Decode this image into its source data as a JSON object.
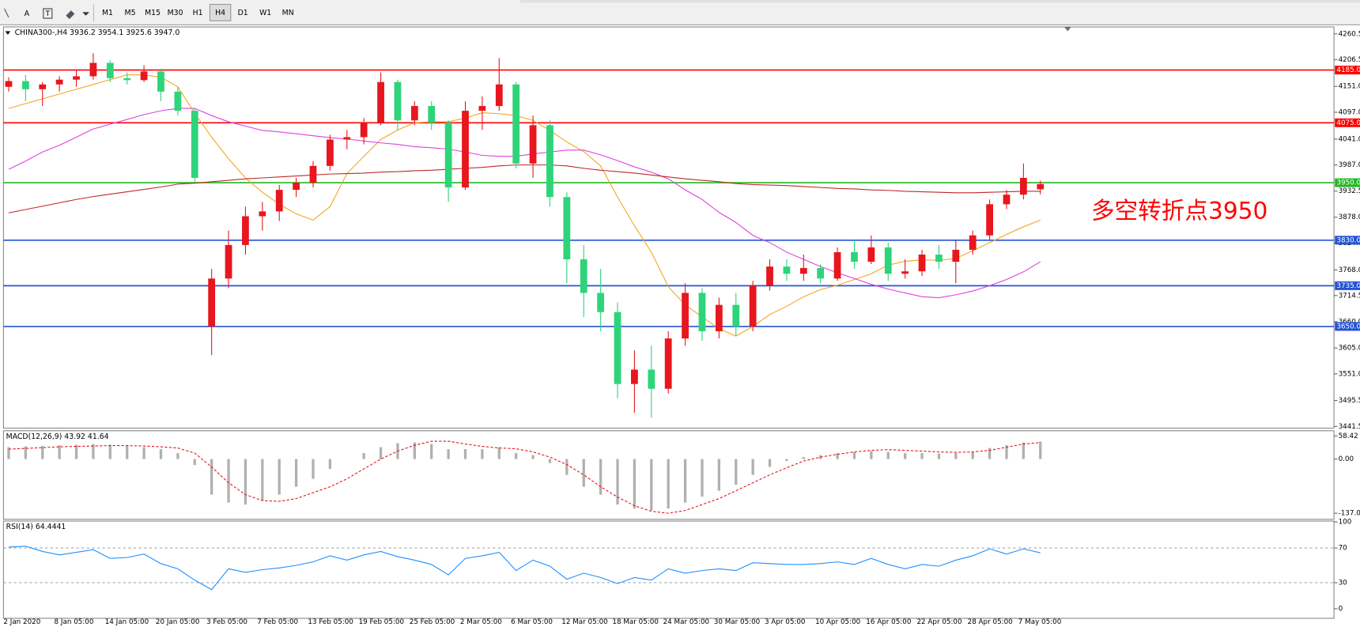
{
  "toolbar": {
    "text_button": "A",
    "timeframes": [
      "M1",
      "M5",
      "M15",
      "M30",
      "H1",
      "H4",
      "D1",
      "W1",
      "MN"
    ],
    "active": "H4"
  },
  "chart_data": [
    {
      "type": "candlestick",
      "title": "CHINA300-,H4  3936.2 3954.1 3925.6 3947.0",
      "categories": [
        "2 Jan 2020",
        null,
        null,
        "8 Jan 05:00",
        null,
        null,
        "14 Jan 05:00",
        null,
        null,
        "20 Jan 05:00",
        null,
        null,
        "3 Feb 05:00",
        null,
        null,
        "7 Feb 05:00",
        null,
        null,
        "13 Feb 05:00",
        null,
        null,
        "19 Feb 05:00",
        null,
        null,
        "25 Feb 05:00",
        null,
        null,
        "2 Mar 05:00",
        null,
        null,
        "6 Mar 05:00",
        null,
        null,
        "12 Mar 05:00",
        null,
        null,
        "18 Mar 05:00",
        null,
        null,
        "24 Mar 05:00",
        null,
        null,
        "30 Mar 05:00",
        null,
        null,
        "3 Apr 05:00",
        null,
        null,
        "10 Apr 05:00",
        null,
        null,
        "16 Apr 05:00",
        null,
        null,
        "22 Apr 05:00",
        null,
        null,
        "28 Apr 05:00",
        null,
        null,
        "7 May 05:00",
        null
      ],
      "open": [
        4150,
        4162,
        4145,
        4155,
        4165,
        4172,
        4200,
        4168,
        4164,
        4182,
        4140,
        4100,
        3650,
        3750,
        3820,
        3880,
        3890,
        3935,
        3950,
        3985,
        4040,
        4045,
        4075,
        4160,
        4080,
        4110,
        4075,
        3940,
        4100,
        4110,
        4155,
        3990,
        4070,
        3920,
        3790,
        3720,
        3680,
        3530,
        3560,
        3520,
        3625,
        3720,
        3640,
        3695,
        3650,
        3735,
        3775,
        3760,
        3772,
        3750,
        3805,
        3785,
        3815,
        3760,
        3765,
        3800,
        3785,
        3810,
        3840,
        3905,
        3925,
        3936.2
      ],
      "high": [
        4170,
        4175,
        4160,
        4172,
        4185,
        4220,
        4205,
        4180,
        4195,
        4188,
        4150,
        4105,
        3770,
        3850,
        3900,
        3910,
        3945,
        3960,
        3995,
        4050,
        4060,
        4085,
        4180,
        4165,
        4120,
        4120,
        4080,
        4120,
        4130,
        4210,
        4160,
        4090,
        4080,
        3930,
        3820,
        3770,
        3700,
        3600,
        3610,
        3640,
        3740,
        3730,
        3710,
        3720,
        3745,
        3790,
        3790,
        3800,
        3780,
        3815,
        3830,
        3840,
        3825,
        3790,
        3810,
        3820,
        3830,
        3850,
        3915,
        3935,
        3990,
        3954.1
      ],
      "low": [
        4140,
        4120,
        4110,
        4140,
        4150,
        4165,
        4160,
        4155,
        4160,
        4120,
        4090,
        3950,
        3590,
        3730,
        3800,
        3850,
        3870,
        3920,
        3940,
        3975,
        4020,
        4030,
        4070,
        4060,
        4070,
        4060,
        3910,
        3935,
        4060,
        4100,
        3980,
        3960,
        3900,
        3740,
        3670,
        3640,
        3500,
        3470,
        3460,
        3510,
        3610,
        3620,
        3625,
        3630,
        3640,
        3725,
        3745,
        3745,
        3740,
        3745,
        3770,
        3780,
        3745,
        3750,
        3755,
        3770,
        3740,
        3800,
        3830,
        3895,
        3915,
        3925.6
      ],
      "close": [
        4162,
        4145,
        4155,
        4165,
        4172,
        4200,
        4168,
        4164,
        4182,
        4140,
        4100,
        3960,
        3750,
        3820,
        3880,
        3890,
        3935,
        3950,
        3985,
        4040,
        4045,
        4075,
        4160,
        4080,
        4110,
        4075,
        3940,
        4100,
        4110,
        4155,
        3990,
        4070,
        3920,
        3790,
        3720,
        3680,
        3530,
        3560,
        3520,
        3625,
        3720,
        3640,
        3695,
        3650,
        3735,
        3775,
        3760,
        3772,
        3750,
        3805,
        3785,
        3815,
        3760,
        3765,
        3800,
        3785,
        3810,
        3840,
        3905,
        3925,
        3960,
        3947
      ],
      "up_color": "#e8161d",
      "down_color": "#2ed47a",
      "overlays": [
        {
          "color": "#f5a623",
          "values": [
            4105,
            4115,
            4125,
            4135,
            4145,
            4155,
            4165,
            4175,
            4175,
            4170,
            4150,
            4095,
            4045,
            4000,
            3960,
            3930,
            3905,
            3885,
            3872,
            3900,
            3969,
            4005,
            4040,
            4060,
            4075,
            4077,
            4077,
            4085,
            4096,
            4094,
            4090,
            4080,
            4059,
            4035,
            4015,
            3985,
            3920,
            3860,
            3805,
            3733,
            3695,
            3670,
            3645,
            3630,
            3650,
            3675,
            3692,
            3712,
            3727,
            3736,
            3748,
            3760,
            3778,
            3786,
            3789,
            3788,
            3792,
            3808,
            3825,
            3842,
            3858,
            3872
          ]
        },
        {
          "color": "#e040e0",
          "values": [
            3978,
            3995,
            4014,
            4028,
            4045,
            4062,
            4072,
            4082,
            4092,
            4100,
            4105,
            4105,
            4090,
            4077,
            4068,
            4059,
            4056,
            4052,
            4048,
            4044,
            4041,
            4037,
            4033,
            4030,
            4025,
            4023,
            4020,
            4014,
            4007,
            4005,
            4005,
            4010,
            4014,
            4018,
            4018,
            4008,
            3996,
            3983,
            3972,
            3958,
            3935,
            3915,
            3888,
            3867,
            3840,
            3825,
            3805,
            3790,
            3775,
            3762,
            3750,
            3738,
            3728,
            3720,
            3712,
            3710,
            3716,
            3724,
            3735,
            3748,
            3764,
            3785
          ]
        },
        {
          "color": "#c0282a",
          "values": [
            3887,
            3894,
            3901,
            3908,
            3915,
            3921,
            3926,
            3931,
            3936,
            3941,
            3947,
            3949,
            3952,
            3955,
            3958,
            3960,
            3962,
            3964,
            3966,
            3968,
            3969,
            3970,
            3972,
            3973,
            3975,
            3976,
            3978,
            3980,
            3982,
            3985,
            3987,
            3987,
            3987,
            3985,
            3980,
            3976,
            3973,
            3970,
            3966,
            3962,
            3958,
            3955,
            3952,
            3948,
            3946,
            3945,
            3944,
            3942,
            3940,
            3938,
            3937,
            3935,
            3934,
            3932,
            3931,
            3930,
            3929,
            3929,
            3930,
            3931,
            3932,
            3932
          ]
        }
      ],
      "levels": [
        {
          "value": 4185,
          "label": "4185.0",
          "color": "#ff0000"
        },
        {
          "value": 4075,
          "label": "4075.0",
          "color": "#ff0000"
        },
        {
          "value": 3950,
          "label": "3950.0",
          "color": "#22b822"
        },
        {
          "value": 3830,
          "label": "3830.0",
          "color": "#2454d6"
        },
        {
          "value": 3735,
          "label": "3735.0",
          "color": "#2454d6"
        },
        {
          "value": 3650,
          "label": "3650.0",
          "color": "#2454d6"
        }
      ],
      "annotation": {
        "text": "多空转折点3950",
        "color": "#ff0000"
      },
      "ylim": [
        3441.5,
        4260.5
      ],
      "yticks": [
        4260.5,
        4206.5,
        {
          "value": 4151,
          "label": "4151.0"
        },
        {
          "value": 4097,
          "label": "4097.0"
        },
        {
          "value": 4041,
          "label": "4041.0"
        },
        {
          "value": 3987,
          "label": "3987.0"
        },
        3932.5,
        {
          "value": 3878,
          "label": "3878.0"
        },
        {
          "value": 3824,
          "label": "3824.0"
        },
        {
          "value": 3768,
          "label": "3768.0"
        },
        3714.5,
        {
          "value": 3660,
          "label": "3660.0"
        },
        {
          "value": 3605,
          "label": "3605.0"
        },
        {
          "value": 3551,
          "label": "3551.0"
        },
        3495.5,
        3441.5
      ]
    },
    {
      "type": "macd",
      "title": "MACD(12,26,9) 43.92 41.64",
      "histogram": [
        30,
        32,
        33,
        35,
        36,
        38,
        36,
        34,
        30,
        25,
        15,
        -15,
        -90,
        -110,
        -115,
        -105,
        -90,
        -70,
        -50,
        -25,
        0,
        15,
        30,
        40,
        42,
        38,
        25,
        25,
        25,
        30,
        15,
        10,
        -10,
        -40,
        -70,
        -90,
        -115,
        -125,
        -130,
        -125,
        -110,
        -95,
        -80,
        -65,
        -40,
        -20,
        -5,
        5,
        10,
        15,
        18,
        20,
        18,
        15,
        15,
        14,
        15,
        18,
        28,
        35,
        42,
        43.92
      ],
      "signal": [
        25,
        27,
        29,
        31,
        32,
        33,
        34,
        34,
        33,
        31,
        28,
        15,
        -20,
        -60,
        -90,
        -105,
        -107,
        -100,
        -85,
        -70,
        -50,
        -25,
        0,
        20,
        35,
        45,
        45,
        38,
        32,
        28,
        26,
        18,
        5,
        -14,
        -40,
        -70,
        -96,
        -118,
        -132,
        -137,
        -130,
        -115,
        -100,
        -80,
        -60,
        -40,
        -22,
        -5,
        5,
        12,
        18,
        22,
        24,
        22,
        20,
        18,
        17,
        18,
        22,
        30,
        38,
        41.64
      ],
      "histogram_color": "#b0b0b0",
      "signal_color": "#e8161d",
      "ylim": [
        -137,
        58.42
      ],
      "yticks": [
        58.42,
        {
          "value": 0,
          "label": "0.00"
        },
        {
          "value": -137,
          "label": "-137.0"
        }
      ]
    },
    {
      "type": "line",
      "title": "RSI(14) 64.4441",
      "values": [
        71,
        72,
        66,
        62,
        65,
        68,
        58,
        59,
        63,
        52,
        46,
        33,
        22,
        46,
        42,
        45,
        47,
        50,
        54,
        61,
        56,
        62,
        66,
        60,
        56,
        51,
        39,
        58,
        61,
        65,
        44,
        56,
        49,
        34,
        41,
        36,
        29,
        36,
        33,
        46,
        41,
        44,
        46,
        44,
        53,
        52,
        51,
        51,
        52,
        54,
        51,
        58,
        51,
        46,
        51,
        49,
        56,
        61,
        69,
        63,
        69,
        64.4441
      ],
      "color": "#1e90ff",
      "levels": [
        70,
        30
      ],
      "ylim": [
        0,
        100
      ],
      "yticks": [
        100,
        70,
        30,
        0
      ]
    }
  ]
}
